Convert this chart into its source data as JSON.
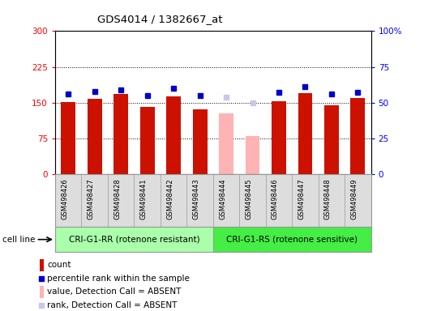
{
  "title": "GDS4014 / 1382667_at",
  "samples": [
    "GSM498426",
    "GSM498427",
    "GSM498428",
    "GSM498441",
    "GSM498442",
    "GSM498443",
    "GSM498444",
    "GSM498445",
    "GSM498446",
    "GSM498447",
    "GSM498448",
    "GSM498449"
  ],
  "counts": [
    152,
    158,
    168,
    141,
    163,
    136,
    127,
    80,
    153,
    170,
    145,
    160
  ],
  "ranks": [
    56,
    58,
    59,
    55,
    60,
    55,
    54,
    50,
    57,
    61,
    56,
    57
  ],
  "absent": [
    false,
    false,
    false,
    false,
    false,
    false,
    true,
    true,
    false,
    false,
    false,
    false
  ],
  "group1_label": "CRI-G1-RR (rotenone resistant)",
  "group2_label": "CRI-G1-RS (rotenone sensitive)",
  "group1_count": 6,
  "group2_count": 6,
  "ylim_left": [
    0,
    300
  ],
  "ylim_right": [
    0,
    100
  ],
  "yticks_left": [
    0,
    75,
    150,
    225,
    300
  ],
  "yticks_right": [
    0,
    25,
    50,
    75,
    100
  ],
  "bar_color_normal": "#cc1100",
  "bar_color_absent": "#ffb3b3",
  "rank_color_normal": "#0000cc",
  "rank_color_absent": "#c8c8e8",
  "group1_bg": "#aaffaa",
  "group2_bg": "#44ee44",
  "sample_bg": "#dddddd",
  "cell_line_label": "cell line",
  "legend_items": [
    {
      "label": "count",
      "color": "#cc1100",
      "type": "bar"
    },
    {
      "label": "percentile rank within the sample",
      "color": "#0000cc",
      "type": "square"
    },
    {
      "label": "value, Detection Call = ABSENT",
      "color": "#ffb3b3",
      "type": "bar"
    },
    {
      "label": "rank, Detection Call = ABSENT",
      "color": "#c8c8e8",
      "type": "square"
    }
  ]
}
